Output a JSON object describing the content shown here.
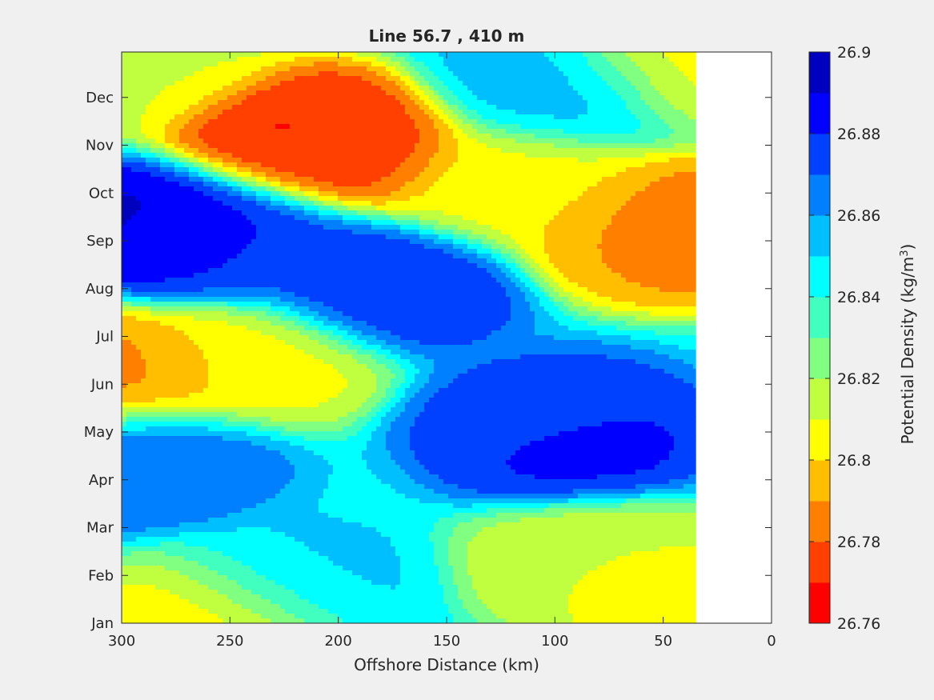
{
  "chart_data": {
    "type": "contour",
    "title": "Line 56.7 , 410 m",
    "xlabel": "Offshore Distance (km)",
    "x_ticks": [
      300,
      250,
      200,
      150,
      100,
      50,
      0
    ],
    "xlim": [
      300,
      0
    ],
    "x_reversed": true,
    "y_ticks": [
      "Jan",
      "Feb",
      "Mar",
      "Apr",
      "May",
      "Jun",
      "Jul",
      "Aug",
      "Sep",
      "Oct",
      "Nov",
      "Dec"
    ],
    "ylim_months": [
      0,
      11.95
    ],
    "data_extent_km": [
      300,
      35
    ],
    "colorbar": {
      "label_prefix": "Potential Density (kg/m",
      "label_sup": "3",
      "label_suffix": ")",
      "ticks": [
        "26.76",
        "26.78",
        "26.8",
        "26.82",
        "26.84",
        "26.86",
        "26.88",
        "26.9"
      ],
      "range": [
        26.76,
        26.9
      ],
      "levels": [
        26.76,
        26.77,
        26.78,
        26.79,
        26.8,
        26.81,
        26.82,
        26.83,
        26.84,
        26.85,
        26.86,
        26.87,
        26.88,
        26.89,
        26.9
      ],
      "colors": [
        "#ff0000",
        "#ff4000",
        "#ff8000",
        "#ffbf00",
        "#ffff00",
        "#bfff40",
        "#80ff80",
        "#40ffbf",
        "#00ffff",
        "#00bfff",
        "#0080ff",
        "#0040ff",
        "#0000ff",
        "#0000bf"
      ]
    },
    "background_density": 26.845,
    "features": [
      {
        "name": "nov-dense-low",
        "km": 215,
        "month": 10.2,
        "value": 26.765
      },
      {
        "name": "nov-low-ring",
        "km": 200,
        "month": 10.0,
        "value": 26.775
      },
      {
        "name": "sep-east-low",
        "km": 40,
        "month": 8.2,
        "value": 26.775
      },
      {
        "name": "sep-east-ring",
        "km": 55,
        "month": 8.2,
        "value": 26.795
      },
      {
        "name": "sep-west-high",
        "km": 275,
        "month": 8.3,
        "value": 26.895
      },
      {
        "name": "sep-west-ring",
        "km": 250,
        "month": 8.0,
        "value": 26.875
      },
      {
        "name": "aug-high",
        "km": 180,
        "month": 7.0,
        "value": 26.88
      },
      {
        "name": "may-high",
        "km": 95,
        "month": 4.0,
        "value": 26.89
      },
      {
        "name": "may-ring",
        "km": 100,
        "month": 4.2,
        "value": 26.87
      },
      {
        "name": "jun-low",
        "km": 240,
        "month": 5.5,
        "value": 26.805
      },
      {
        "name": "jun-edge-low",
        "km": 300,
        "month": 5.2,
        "value": 26.785
      },
      {
        "name": "apr-edge-high",
        "km": 290,
        "month": 3.4,
        "value": 26.87
      },
      {
        "name": "oct-low",
        "km": 120,
        "month": 9.2,
        "value": 26.805
      },
      {
        "name": "dec-high",
        "km": 100,
        "month": 11.2,
        "value": 26.855
      },
      {
        "name": "dec-west-low",
        "km": 290,
        "month": 11.7,
        "value": 26.81
      },
      {
        "name": "dec-east-low",
        "km": 40,
        "month": 11.8,
        "value": 26.805
      },
      {
        "name": "jan-low",
        "km": 255,
        "month": 0.1,
        "value": 26.8
      },
      {
        "name": "jan-east-low",
        "km": 40,
        "month": 0.4,
        "value": 26.805
      },
      {
        "name": "feb-low",
        "km": 80,
        "month": 1.2,
        "value": 26.81
      },
      {
        "name": "feb-high",
        "km": 220,
        "month": 0.8,
        "value": 26.852
      }
    ]
  }
}
